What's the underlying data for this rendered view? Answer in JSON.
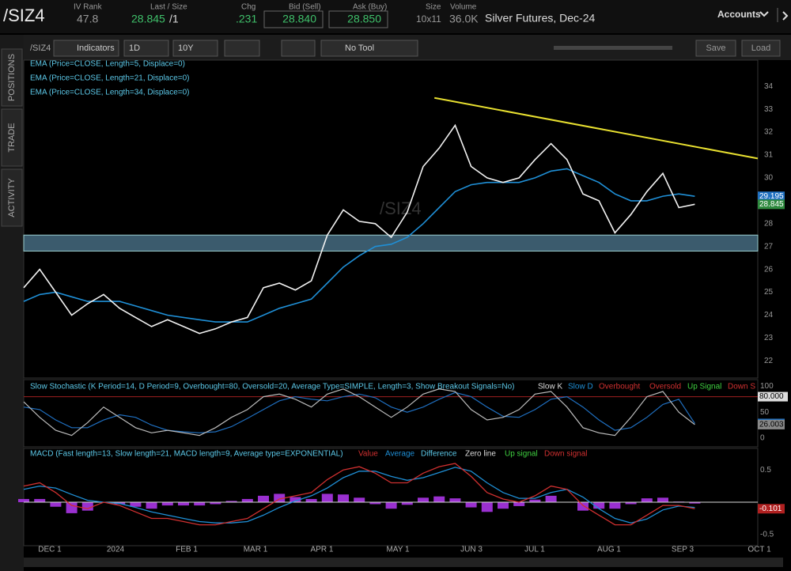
{
  "header": {
    "symbol": "/SIZ4",
    "iv_rank_label": "IV Rank",
    "iv_rank": "47.8",
    "last_label": "Last / Size",
    "last": "28.845",
    "size": "/1",
    "chg_label": "Chg",
    "chg": ".231",
    "bid_label": "Bid (Sell)",
    "bid": "28.840",
    "ask_label": "Ask (Buy)",
    "ask": "28.850",
    "size_label": "Size",
    "size_value": "10x11",
    "volume_label": "Volume",
    "volume": "36.0K",
    "description": "Silver Futures, Dec-24",
    "accounts": "Accounts"
  },
  "toolbar": {
    "symbol": "/SIZ4",
    "indicators": "Indicators",
    "aggregation": "1D",
    "period": "10Y",
    "tool": "No Tool",
    "save": "Save",
    "load": "Load"
  },
  "side_tabs": [
    "POSITIONS",
    "TRADE",
    "ACTIVITY"
  ],
  "price_pane": {
    "studies": [
      "EMA (Price=CLOSE, Length=5, Displace=0)",
      "EMA (Price=CLOSE, Length=21, Displace=0)",
      "EMA (Price=CLOSE, Length=34, Displace=0)"
    ],
    "watermark": "/SIZ4",
    "ylim": [
      21.25,
      35.15
    ],
    "yticks": [
      22,
      23,
      24,
      25,
      26,
      27,
      28,
      29,
      30,
      31,
      32,
      33,
      34
    ],
    "close": [
      25.2,
      26.0,
      25.0,
      24.0,
      24.5,
      24.9,
      24.3,
      23.9,
      23.5,
      23.8,
      23.5,
      23.2,
      23.4,
      23.7,
      23.9,
      25.2,
      25.4,
      25.1,
      25.5,
      27.5,
      28.6,
      28.1,
      28.0,
      27.4,
      28.5,
      30.5,
      31.3,
      32.3,
      30.5,
      30.0,
      29.8,
      30.0,
      30.8,
      31.5,
      30.8,
      29.3,
      29.0,
      27.6,
      28.4,
      29.4,
      30.2,
      28.7,
      28.845
    ],
    "ema21": [
      24.6,
      24.9,
      25.0,
      24.8,
      24.6,
      24.6,
      24.6,
      24.4,
      24.2,
      24.0,
      23.9,
      23.8,
      23.7,
      23.7,
      23.7,
      24.0,
      24.3,
      24.5,
      24.7,
      25.4,
      26.1,
      26.6,
      27.0,
      27.1,
      27.4,
      28.0,
      28.7,
      29.4,
      29.7,
      29.8,
      29.8,
      29.8,
      30.0,
      30.3,
      30.4,
      30.1,
      29.8,
      29.3,
      29.0,
      29.0,
      29.2,
      29.3,
      29.195
    ],
    "trendline": {
      "start": 33.5,
      "end": 30.85
    },
    "support_band": [
      26.8,
      27.5
    ]
  },
  "stochastic": {
    "title": "Slow Stochastic (K Period=14, D Period=9, Overbought=80, Oversold=20, Average Type=SIMPLE, Length=3, Show Breakout Signals=No)",
    "legend": [
      "Slow K",
      "Slow D",
      "Overbought",
      "Oversold",
      "Up Signal",
      "Down S"
    ],
    "ylim": [
      -17,
      113
    ],
    "yticks": [
      0,
      50,
      100,
      {
        "value": 80,
        "label": "80.000"
      }
    ],
    "slow_k": [
      70,
      40,
      15,
      5,
      30,
      60,
      40,
      20,
      10,
      15,
      10,
      5,
      20,
      40,
      55,
      80,
      85,
      75,
      60,
      85,
      95,
      80,
      60,
      40,
      60,
      85,
      95,
      90,
      55,
      35,
      40,
      55,
      85,
      90,
      60,
      20,
      10,
      5,
      40,
      80,
      90,
      50,
      26.003
    ],
    "slow_d": [
      60,
      55,
      35,
      20,
      20,
      35,
      45,
      40,
      25,
      15,
      12,
      10,
      12,
      22,
      38,
      55,
      72,
      80,
      75,
      72,
      80,
      85,
      78,
      60,
      50,
      60,
      75,
      88,
      80,
      60,
      42,
      40,
      55,
      75,
      80,
      60,
      35,
      15,
      20,
      40,
      65,
      75,
      28.217
    ]
  },
  "macd": {
    "title": "MACD (Fast length=13, Slow length=21, MACD length=9, Average type=EXPONENTIAL)",
    "legend": [
      "Value",
      "Average",
      "Difference",
      "Zero line",
      "Up signal",
      "Down signal"
    ],
    "ylim": [
      -0.673,
      0.833
    ],
    "yticks": [
      0.5,
      -0.5
    ],
    "value": [
      0.25,
      0.3,
      0.15,
      -0.05,
      -0.1,
      0.0,
      -0.05,
      -0.15,
      -0.25,
      -0.25,
      -0.3,
      -0.35,
      -0.35,
      -0.3,
      -0.25,
      -0.1,
      0.05,
      0.1,
      0.15,
      0.35,
      0.5,
      0.55,
      0.45,
      0.3,
      0.3,
      0.45,
      0.55,
      0.6,
      0.4,
      0.15,
      0.05,
      0.0,
      0.1,
      0.25,
      0.2,
      -0.05,
      -0.2,
      -0.35,
      -0.35,
      -0.2,
      -0.05,
      -0.05,
      -0.101
    ],
    "average": [
      0.2,
      0.25,
      0.22,
      0.12,
      0.03,
      0.0,
      -0.02,
      -0.08,
      -0.15,
      -0.2,
      -0.25,
      -0.3,
      -0.32,
      -0.32,
      -0.3,
      -0.2,
      -0.08,
      0.02,
      0.1,
      0.22,
      0.38,
      0.48,
      0.48,
      0.4,
      0.34,
      0.38,
      0.46,
      0.54,
      0.48,
      0.3,
      0.15,
      0.06,
      0.06,
      0.15,
      0.2,
      0.08,
      -0.1,
      -0.25,
      -0.32,
      -0.26,
      -0.12,
      -0.06,
      -0.08
    ],
    "difference": [
      0.05,
      0.05,
      -0.07,
      -0.17,
      -0.13,
      0,
      -0.03,
      -0.07,
      -0.1,
      -0.05,
      -0.05,
      -0.05,
      -0.03,
      0.02,
      0.05,
      0.1,
      0.13,
      0.08,
      0.05,
      0.13,
      0.12,
      0.07,
      -0.03,
      -0.1,
      -0.04,
      0.07,
      0.09,
      0.06,
      -0.08,
      -0.15,
      -0.1,
      -0.06,
      0.04,
      0.1,
      0,
      -0.13,
      -0.1,
      -0.1,
      -0.03,
      0.06,
      0.07,
      0.01,
      -0.02
    ]
  },
  "date_axis": [
    "DEC 1",
    "2024",
    "FEB 1",
    "MAR 1",
    "APR 1",
    "MAY 1",
    "JUN 3",
    "JUL 1",
    "AUG 1",
    "SEP 3",
    "OCT 1"
  ]
}
